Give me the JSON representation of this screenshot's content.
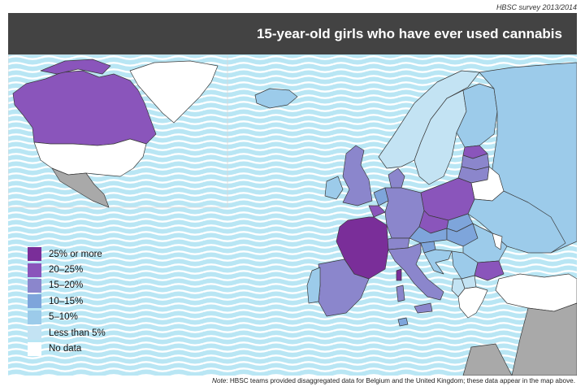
{
  "header": {
    "survey_label": "HBSC survey 2013/2014",
    "title": "15-year-old girls who have ever used cannabis"
  },
  "legend": {
    "items": [
      {
        "label": "25% or more",
        "color": "#7a2e99"
      },
      {
        "label": "20–25%",
        "color": "#8a55bb"
      },
      {
        "label": "15–20%",
        "color": "#8b86cc"
      },
      {
        "label": "10–15%",
        "color": "#7ea5db"
      },
      {
        "label": "5–10%",
        "color": "#9ccbea"
      },
      {
        "label": "Less than 5%",
        "color": "#c3e3f3"
      },
      {
        "label": "No data",
        "color": "#ffffff"
      }
    ]
  },
  "colors": {
    "sea": "#b9e6f4",
    "wave": "#ffffff",
    "non_survey": "#a9a9a9",
    "border": "#3a3a3a"
  },
  "note": {
    "prefix": "Note",
    "text": ": HBSC teams provided disaggregated data for Belgium and the United Kingdom; these data appear in the map above."
  }
}
